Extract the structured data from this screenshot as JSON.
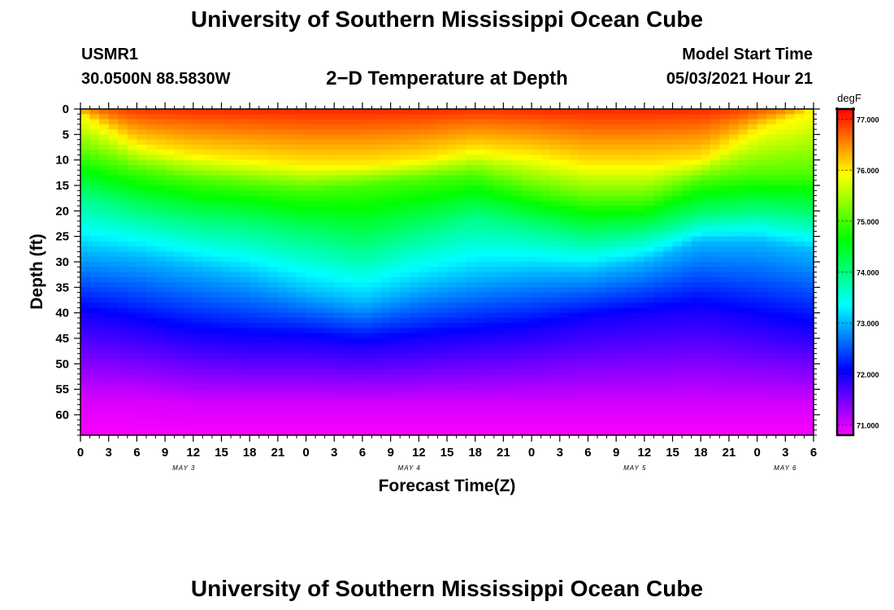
{
  "header": {
    "title": "University of Southern Mississippi Ocean Cube",
    "station_id": "USMR1",
    "station_coords": "30.0500N  88.5830W",
    "plot_title": "2−D Temperature at Depth",
    "model_start_label": "Model Start Time",
    "model_start_value": "05/03/2021 Hour 21"
  },
  "footer": {
    "title": "University of Southern Mississippi Ocean Cube"
  },
  "colors": {
    "colormap": [
      "#ff00ff",
      "#8000ff",
      "#0000ff",
      "#0080ff",
      "#00ffff",
      "#00ff80",
      "#00ff00",
      "#80ff00",
      "#ffff00",
      "#ff8000",
      "#ff0000"
    ]
  },
  "chart_data": {
    "type": "heatmap",
    "title": "2−D Temperature at Depth",
    "xlabel": "Forecast Time(Z)",
    "ylabel": "Depth (ft)",
    "x_ticks": [
      "0",
      "3",
      "6",
      "9",
      "12",
      "15",
      "18",
      "21",
      "0",
      "3",
      "6",
      "9",
      "12",
      "15",
      "18",
      "21",
      "0",
      "3",
      "6",
      "9",
      "12",
      "15",
      "18",
      "21",
      "0",
      "3",
      "6"
    ],
    "x_range_hours": [
      0,
      78
    ],
    "date_labels": [
      {
        "label": "MAY 3",
        "hour": 11
      },
      {
        "label": "MAY 4",
        "hour": 35
      },
      {
        "label": "MAY 5",
        "hour": 59
      },
      {
        "label": "MAY 6",
        "hour": 75
      }
    ],
    "y_ticks": [
      0,
      5,
      10,
      15,
      20,
      25,
      30,
      35,
      40,
      45,
      50,
      55,
      60
    ],
    "y_range": [
      0,
      64
    ],
    "colorbar": {
      "unit": "degF",
      "range": [
        70.8,
        77.2
      ],
      "ticks": [
        "71.000",
        "72.000",
        "73.000",
        "74.000",
        "75.000",
        "76.000",
        "77.000"
      ]
    },
    "contour_depths_ft": {
      "hours": [
        0,
        6,
        12,
        18,
        24,
        30,
        36,
        42,
        48,
        54,
        60,
        66,
        72,
        78
      ],
      "isotherm_76": [
        1,
        7,
        9,
        10,
        11,
        11,
        10,
        8,
        9,
        11,
        11,
        10,
        4,
        0
      ],
      "isotherm_75": [
        9,
        12,
        14,
        15,
        16,
        15,
        14,
        13,
        16,
        18,
        18,
        14,
        13,
        13
      ],
      "isotherm_74": [
        17,
        20,
        22,
        23,
        25,
        27,
        24,
        21,
        23,
        25,
        24,
        21,
        20,
        21
      ],
      "isotherm_73": [
        28,
        29,
        31,
        33,
        36,
        38,
        35,
        33,
        32,
        32,
        30,
        26,
        26,
        28
      ],
      "isotherm_72": [
        40,
        42,
        44,
        45,
        45,
        46,
        45,
        44,
        43,
        41,
        40,
        39,
        41,
        43
      ],
      "isotherm_71": [
        57,
        57,
        58,
        58,
        58,
        58,
        58,
        58,
        58,
        58,
        58,
        58,
        58,
        58
      ]
    }
  }
}
